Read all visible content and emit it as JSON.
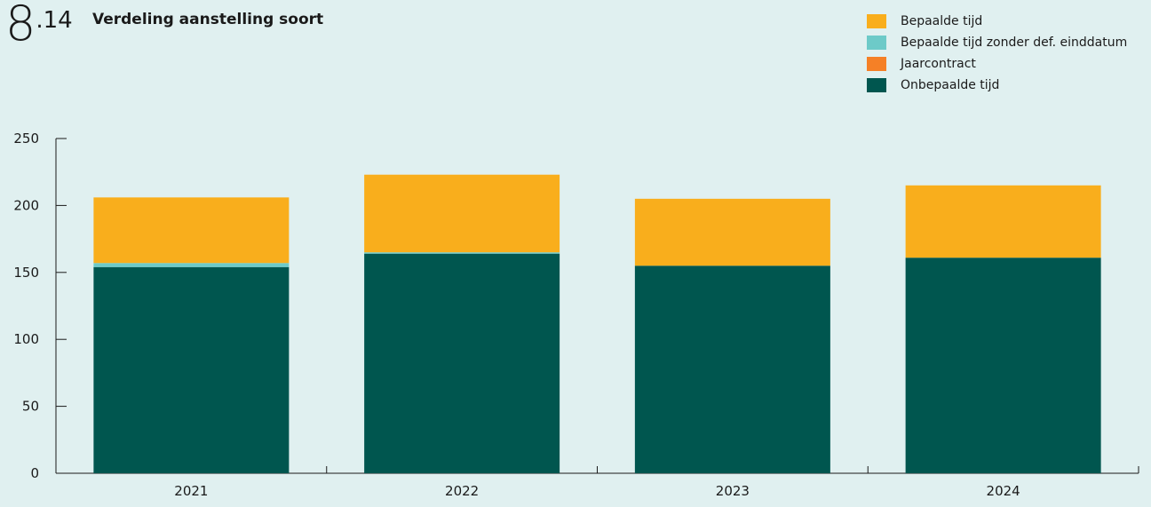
{
  "figure": {
    "number_major": "8",
    "number_minor": ".14",
    "title": "Verdeling aanstelling soort"
  },
  "colors": {
    "background": "#e0f0f0",
    "axis": "#1a1a1a"
  },
  "chart_data": {
    "type": "bar",
    "stacked": true,
    "title": "Verdeling aanstelling soort",
    "xlabel": "",
    "ylabel": "",
    "categories": [
      "2021",
      "2022",
      "2023",
      "2024"
    ],
    "ylim": [
      0,
      250
    ],
    "yticks": [
      0,
      50,
      100,
      150,
      200,
      250
    ],
    "grid": false,
    "legend_position": "top-right",
    "series": [
      {
        "name": "Onbepaalde tijd",
        "color": "#00564f",
        "values": [
          154,
          164,
          155,
          161
        ]
      },
      {
        "name": "Jaarcontract",
        "color": "#f58026",
        "values": [
          0,
          0,
          0,
          0
        ]
      },
      {
        "name": "Bepaalde tijd zonder def. einddatum",
        "color": "#6dcac8",
        "values": [
          3,
          1,
          0,
          0
        ]
      },
      {
        "name": "Bepaalde tijd",
        "color": "#f9ae1c",
        "values": [
          49,
          58,
          50,
          54
        ]
      }
    ],
    "legend_order": [
      "Bepaalde tijd",
      "Bepaalde tijd zonder def. einddatum",
      "Jaarcontract",
      "Onbepaalde tijd"
    ]
  }
}
